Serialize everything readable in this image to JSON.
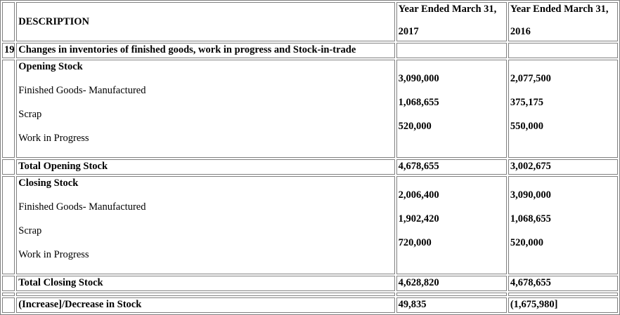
{
  "header": {
    "description": "DESCRIPTION",
    "year1_line1": "Year Ended March 31,",
    "year1_line2": "2017",
    "year2_line1": "Year Ended March 31,",
    "year2_line2": "2016"
  },
  "note": {
    "number": "19",
    "title": "Changes in inventories of finished goods, work in progress and Stock-in-trade"
  },
  "opening": {
    "heading": "Opening Stock",
    "items": [
      "Finished Goods- Manufactured",
      "Scrap",
      "Work in Progress"
    ],
    "values_2017": [
      "3,090,000",
      "1,068,655",
      "520,000"
    ],
    "values_2016": [
      "2,077,500",
      "375,175",
      "550,000"
    ],
    "total_label": "Total Opening Stock",
    "total_2017": "4,678,655",
    "total_2016": "3,002,675"
  },
  "closing": {
    "heading": "Closing Stock",
    "items": [
      "Finished Goods- Manufactured",
      "Scrap",
      "Work in Progress"
    ],
    "values_2017": [
      "2,006,400",
      "1,902,420",
      "720,000"
    ],
    "values_2016": [
      "3,090,000",
      "1,068,655",
      "520,000"
    ],
    "total_label": "Total Closing Stock",
    "total_2017": "4,628,820",
    "total_2016": "4,678,655"
  },
  "change": {
    "label": "(Increase]/Decrease in Stock",
    "value_2017": "49,835",
    "value_2016": "(1,675,980]"
  }
}
